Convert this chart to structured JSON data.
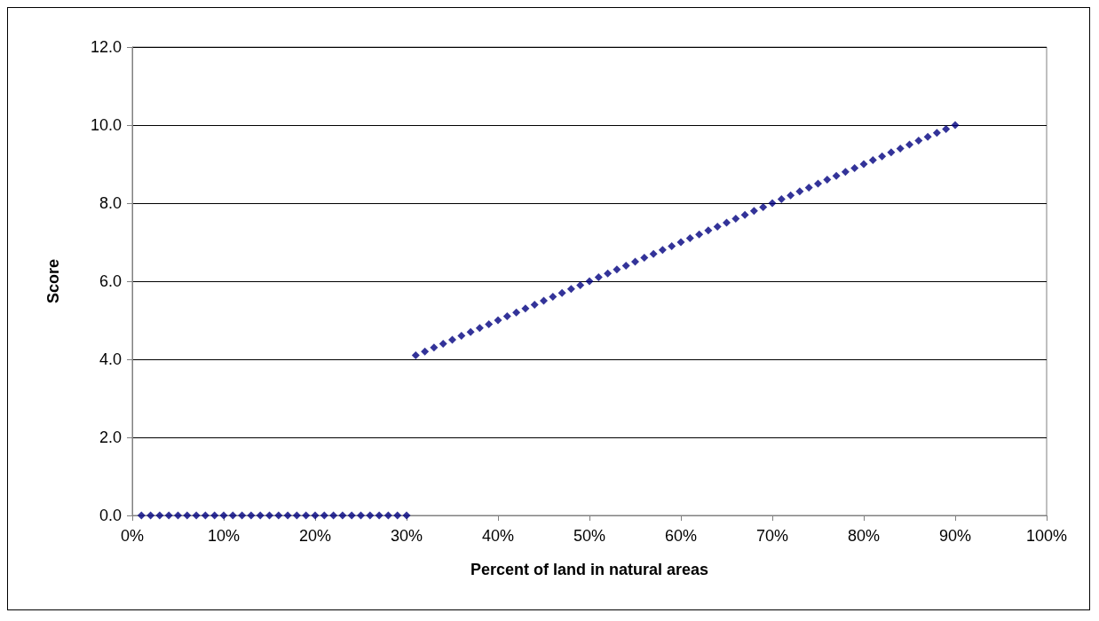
{
  "chart_data": {
    "type": "scatter",
    "xlabel": "Percent of land in natural areas",
    "ylabel": "Score",
    "marker": "diamond",
    "grid": "y",
    "x": [
      1,
      2,
      3,
      4,
      5,
      6,
      7,
      8,
      9,
      10,
      11,
      12,
      13,
      14,
      15,
      16,
      17,
      18,
      19,
      20,
      21,
      22,
      23,
      24,
      25,
      26,
      27,
      28,
      29,
      30,
      31,
      32,
      33,
      34,
      35,
      36,
      37,
      38,
      39,
      40,
      41,
      42,
      43,
      44,
      45,
      46,
      47,
      48,
      49,
      50,
      51,
      52,
      53,
      54,
      55,
      56,
      57,
      58,
      59,
      60,
      61,
      62,
      63,
      64,
      65,
      66,
      67,
      68,
      69,
      70,
      71,
      72,
      73,
      74,
      75,
      76,
      77,
      78,
      79,
      80,
      81,
      82,
      83,
      84,
      85,
      86,
      87,
      88,
      89,
      90
    ],
    "series": [
      {
        "color": "#000080",
        "values": [
          0,
          0,
          0,
          0,
          0,
          0,
          0,
          0,
          0,
          0,
          0,
          0,
          0,
          0,
          0,
          0,
          0,
          0,
          0,
          0,
          0,
          0,
          0,
          0,
          0,
          0,
          0,
          0,
          0,
          0,
          4.1,
          4.2,
          4.3,
          4.4,
          4.5,
          4.6,
          4.7,
          4.8,
          4.9,
          5.0,
          5.1,
          5.2,
          5.3,
          5.4,
          5.5,
          5.6,
          5.7,
          5.8,
          5.9,
          6.0,
          6.1,
          6.2,
          6.3,
          6.4,
          6.5,
          6.6,
          6.7,
          6.8,
          6.9,
          7.0,
          7.1,
          7.2,
          7.3,
          7.4,
          7.5,
          7.6,
          7.7,
          7.8,
          7.9,
          8.0,
          8.1,
          8.2,
          8.3,
          8.4,
          8.5,
          8.6,
          8.7,
          8.8,
          8.9,
          9.0,
          9.1,
          9.2,
          9.3,
          9.4,
          9.5,
          9.6,
          9.7,
          9.8,
          9.9,
          10.0
        ]
      }
    ],
    "xlim": [
      0,
      100
    ],
    "xticks": [
      {
        "value": 0,
        "label": "0%"
      },
      {
        "value": 10,
        "label": "10%"
      },
      {
        "value": 20,
        "label": "20%"
      },
      {
        "value": 30,
        "label": "30%"
      },
      {
        "value": 40,
        "label": "40%"
      },
      {
        "value": 50,
        "label": "50%"
      },
      {
        "value": 60,
        "label": "60%"
      },
      {
        "value": 70,
        "label": "70%"
      },
      {
        "value": 80,
        "label": "80%"
      },
      {
        "value": 90,
        "label": "90%"
      },
      {
        "value": 100,
        "label": "100%"
      }
    ],
    "ylim": [
      0,
      12
    ],
    "yticks": [
      {
        "value": 0,
        "label": "0.0"
      },
      {
        "value": 2,
        "label": "2.0"
      },
      {
        "value": 4,
        "label": "4.0"
      },
      {
        "value": 6,
        "label": "6.0"
      },
      {
        "value": 8,
        "label": "8.0"
      },
      {
        "value": 10,
        "label": "10.0"
      },
      {
        "value": 12,
        "label": "12.0"
      }
    ]
  }
}
